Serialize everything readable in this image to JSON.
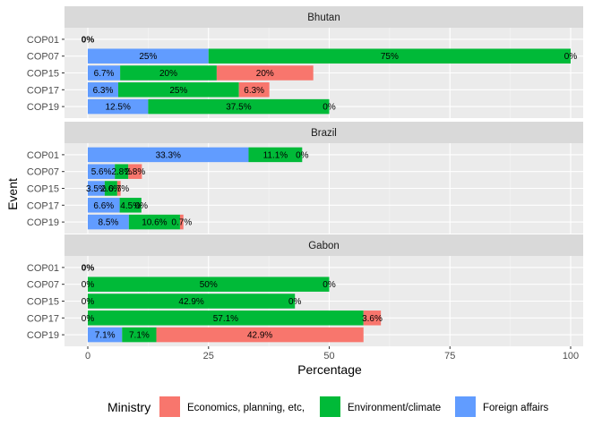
{
  "chart_data": {
    "type": "bar",
    "orientation": "horizontal",
    "stacked": true,
    "xlabel": "Percentage",
    "ylabel": "Event",
    "xlim": [
      0,
      100
    ],
    "x_ticks": [
      "0",
      "25",
      "50",
      "75",
      "100"
    ],
    "categories": [
      "COP01",
      "COP07",
      "COP15",
      "COP17",
      "COP19"
    ],
    "legend": {
      "title": "Ministry",
      "position": "bottom",
      "entries": [
        {
          "key": "economics",
          "label": "Economics, planning, etc,",
          "color": "#F8766D"
        },
        {
          "key": "environment",
          "label": "Environment/climate",
          "color": "#00BA38"
        },
        {
          "key": "foreign",
          "label": "Foreign affairs",
          "color": "#619CFF"
        }
      ]
    },
    "stack_order": [
      "foreign",
      "environment",
      "economics"
    ],
    "panels": [
      {
        "title": "Bhutan",
        "rows": [
          {
            "event": "COP01",
            "values": {
              "foreign": 0,
              "environment": 0,
              "economics": 0
            },
            "labels": [
              {
                "text": "0%",
                "x": 0,
                "bold": true
              }
            ]
          },
          {
            "event": "COP07",
            "values": {
              "foreign": 25,
              "environment": 75,
              "economics": 0
            },
            "labels": [
              {
                "text": "25%",
                "x": 12.5
              },
              {
                "text": "75%",
                "x": 62.5
              },
              {
                "text": "0%",
                "x": 100
              }
            ]
          },
          {
            "event": "COP15",
            "values": {
              "foreign": 6.7,
              "environment": 20,
              "economics": 20
            },
            "labels": [
              {
                "text": "6.7%",
                "x": 3.35
              },
              {
                "text": "20%",
                "x": 16.7
              },
              {
                "text": "20%",
                "x": 36.7
              }
            ]
          },
          {
            "event": "COP17",
            "values": {
              "foreign": 6.3,
              "environment": 25,
              "economics": 6.3
            },
            "labels": [
              {
                "text": "6.3%",
                "x": 3.15
              },
              {
                "text": "25%",
                "x": 18.8
              },
              {
                "text": "6.3%",
                "x": 34.45
              }
            ]
          },
          {
            "event": "COP19",
            "values": {
              "foreign": 12.5,
              "environment": 37.5,
              "economics": 0
            },
            "labels": [
              {
                "text": "12.5%",
                "x": 6.25
              },
              {
                "text": "37.5%",
                "x": 31.25
              },
              {
                "text": "0%",
                "x": 50
              }
            ]
          }
        ]
      },
      {
        "title": "Brazil",
        "rows": [
          {
            "event": "COP01",
            "values": {
              "foreign": 33.3,
              "environment": 11.1,
              "economics": 0
            },
            "labels": [
              {
                "text": "33.3%",
                "x": 16.65
              },
              {
                "text": "11.1%",
                "x": 38.85
              },
              {
                "text": "0%",
                "x": 44.4
              }
            ]
          },
          {
            "event": "COP07",
            "values": {
              "foreign": 5.6,
              "environment": 2.8,
              "economics": 2.8
            },
            "labels": [
              {
                "text": "5.6%",
                "x": 2.8
              },
              {
                "text": "2.8%",
                "x": 7
              },
              {
                "text": "2.8%",
                "x": 9.8
              }
            ]
          },
          {
            "event": "COP15",
            "values": {
              "foreign": 3.5,
              "environment": 2.6,
              "economics": 0.7
            },
            "labels": [
              {
                "text": "3.5%",
                "x": 1.75
              },
              {
                "text": "2.6%",
                "x": 4.8
              },
              {
                "text": "0.7%",
                "x": 6.45
              }
            ]
          },
          {
            "event": "COP17",
            "values": {
              "foreign": 6.6,
              "environment": 4.5,
              "economics": 0
            },
            "labels": [
              {
                "text": "6.6%",
                "x": 3.3
              },
              {
                "text": "4.5%",
                "x": 8.85
              },
              {
                "text": "0%",
                "x": 11.1
              }
            ]
          },
          {
            "event": "COP19",
            "values": {
              "foreign": 8.5,
              "environment": 10.6,
              "economics": 0.7
            },
            "labels": [
              {
                "text": "8.5%",
                "x": 4.25
              },
              {
                "text": "10.6%",
                "x": 13.8
              },
              {
                "text": "0.7%",
                "x": 19.45
              }
            ]
          }
        ]
      },
      {
        "title": "Gabon",
        "rows": [
          {
            "event": "COP01",
            "values": {
              "foreign": 0,
              "environment": 0,
              "economics": 0
            },
            "labels": [
              {
                "text": "0%",
                "x": 0,
                "bold": true
              }
            ]
          },
          {
            "event": "COP07",
            "values": {
              "foreign": 0,
              "environment": 50,
              "economics": 0
            },
            "labels": [
              {
                "text": "0%",
                "x": 0
              },
              {
                "text": "50%",
                "x": 25
              },
              {
                "text": "0%",
                "x": 50
              }
            ]
          },
          {
            "event": "COP15",
            "values": {
              "foreign": 0,
              "environment": 42.9,
              "economics": 0
            },
            "labels": [
              {
                "text": "0%",
                "x": 0
              },
              {
                "text": "42.9%",
                "x": 21.45
              },
              {
                "text": "0%",
                "x": 42.9
              }
            ]
          },
          {
            "event": "COP17",
            "values": {
              "foreign": 0,
              "environment": 57.1,
              "economics": 3.6
            },
            "labels": [
              {
                "text": "0%",
                "x": 0
              },
              {
                "text": "57.1%",
                "x": 28.55
              },
              {
                "text": "3.6%",
                "x": 58.9
              }
            ]
          },
          {
            "event": "COP19",
            "values": {
              "foreign": 7.1,
              "environment": 7.1,
              "economics": 42.9
            },
            "labels": [
              {
                "text": "7.1%",
                "x": 3.55
              },
              {
                "text": "7.1%",
                "x": 10.65
              },
              {
                "text": "42.9%",
                "x": 35.65
              }
            ]
          }
        ]
      }
    ]
  }
}
